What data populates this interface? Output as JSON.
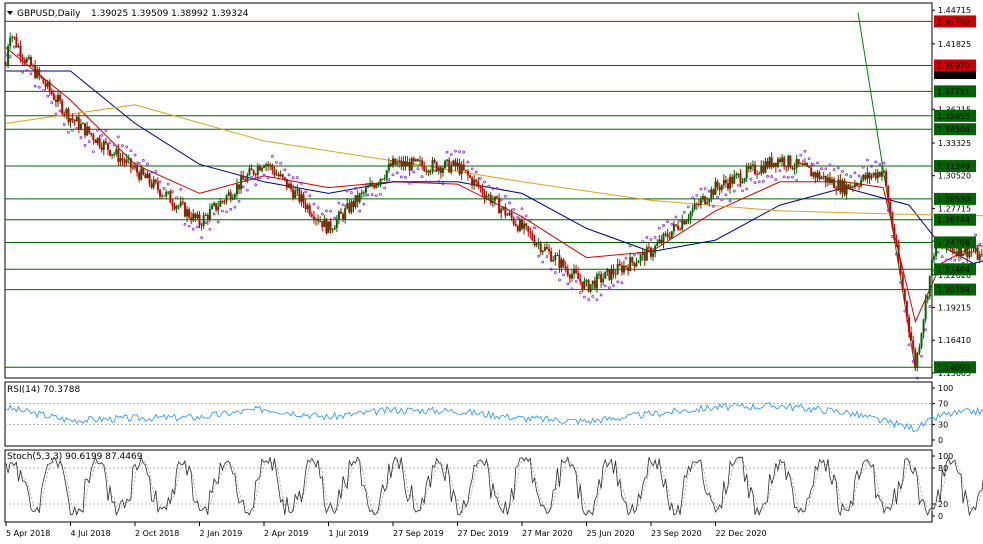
{
  "header": {
    "symbol": "GBPUSD,Daily",
    "ohlc": "1.39025 1.39509 1.38992 1.39324",
    "collapse_icon": "triangle-down-icon"
  },
  "colors": {
    "bull_candle": "#006400",
    "bear_candle": "#cc0000",
    "ma_fast": "#cc0000",
    "ma_mid": "#000080",
    "ma_slow": "#daa520",
    "sar": "#8a2be2",
    "support_line": "#006400",
    "resistance_line": "#cc0000",
    "trendline": "#008000",
    "rsi_line": "#1e90ff",
    "stoch_main": "#2f2f2f",
    "stoch_signal": "#a0a0a0"
  },
  "chart_data": {
    "type": "candlestick",
    "instrument": "GBPUSD",
    "timeframe": "Daily",
    "last_price": 1.39324,
    "ylim": [
      1.136,
      1.449
    ],
    "price_axis_ticks": [
      "1.44715",
      "1.41825",
      "1.39324",
      "1.36215",
      "1.33325",
      "1.30520",
      "1.27715",
      "1.24905",
      "1.22020",
      "1.19215",
      "1.16410",
      "1.13605"
    ],
    "horizontal_levels": [
      {
        "value": 1.4375,
        "label": "1.43750",
        "kind": "resistance"
      },
      {
        "value": 1.3997,
        "label": "1.39970",
        "kind": "resistance"
      },
      {
        "value": 1.37751,
        "label": "1.37751",
        "kind": "support"
      },
      {
        "value": 1.35655,
        "label": "1.35655",
        "kind": "support"
      },
      {
        "value": 1.34504,
        "label": "1.34504",
        "kind": "support"
      },
      {
        "value": 1.31349,
        "label": "1.31349",
        "kind": "support"
      },
      {
        "value": 1.2853,
        "label": "1.28530",
        "kind": "support"
      },
      {
        "value": 1.26744,
        "label": "1.26744",
        "kind": "support"
      },
      {
        "value": 1.24796,
        "label": "1.24796",
        "kind": "support"
      },
      {
        "value": 1.22494,
        "label": "1.22494",
        "kind": "support"
      },
      {
        "value": 1.20754,
        "label": "1.20754",
        "kind": "support"
      },
      {
        "value": 1.14093,
        "label": "1.14093",
        "kind": "support"
      }
    ],
    "x_tick_labels": [
      "5 Apr 2018",
      "4 Jul 2018",
      "2 Oct 2018",
      "2 Jan 2019",
      "2 Apr 2019",
      "1 Jul 2019",
      "27 Sep 2019",
      "27 Dec 2019",
      "27 Mar 2020",
      "25 Jun 2020",
      "23 Sep 2020",
      "22 Dec 2020"
    ],
    "price_path": [
      {
        "t": 0,
        "p": 1.4
      },
      {
        "t": 0.05,
        "p": 1.43
      },
      {
        "t": 0.3,
        "p": 1.405
      },
      {
        "t": 1,
        "p": 1.355
      },
      {
        "t": 2,
        "p": 1.31
      },
      {
        "t": 3,
        "p": 1.265
      },
      {
        "t": 4,
        "p": 1.318
      },
      {
        "t": 5,
        "p": 1.26
      },
      {
        "t": 6,
        "p": 1.315
      },
      {
        "t": 7,
        "p": 1.313
      },
      {
        "t": 8,
        "p": 1.26
      },
      {
        "t": 9,
        "p": 1.21
      },
      {
        "t": 10,
        "p": 1.24
      },
      {
        "t": 11,
        "p": 1.295
      },
      {
        "t": 12,
        "p": 1.32
      },
      {
        "t": 13,
        "p": 1.295
      },
      {
        "t": 13.6,
        "p": 1.31
      },
      {
        "t": 14.1,
        "p": 1.142
      },
      {
        "t": 14.4,
        "p": 1.245
      },
      {
        "t": 15,
        "p": 1.24
      },
      {
        "t": 15.5,
        "p": 1.215
      },
      {
        "t": 16,
        "p": 1.265
      },
      {
        "t": 16.4,
        "p": 1.23
      },
      {
        "t": 17,
        "p": 1.3
      },
      {
        "t": 17.5,
        "p": 1.34
      },
      {
        "t": 18,
        "p": 1.295
      },
      {
        "t": 18.5,
        "p": 1.285
      },
      {
        "t": 19,
        "p": 1.31
      },
      {
        "t": 20,
        "p": 1.345
      },
      {
        "t": 21,
        "p": 1.37
      },
      {
        "t": 21.4,
        "p": 1.393
      }
    ],
    "moving_averages": [
      {
        "name": "fast",
        "points": [
          [
            0,
            1.415
          ],
          [
            1,
            1.37
          ],
          [
            2,
            1.315
          ],
          [
            3,
            1.29
          ],
          [
            4,
            1.305
          ],
          [
            5,
            1.295
          ],
          [
            6,
            1.3
          ],
          [
            7,
            1.298
          ],
          [
            8,
            1.27
          ],
          [
            9,
            1.235
          ],
          [
            10,
            1.24
          ],
          [
            11,
            1.275
          ],
          [
            12,
            1.3
          ],
          [
            13,
            1.3
          ],
          [
            13.6,
            1.295
          ],
          [
            14.1,
            1.18
          ],
          [
            14.5,
            1.23
          ],
          [
            15,
            1.245
          ],
          [
            16,
            1.245
          ],
          [
            17,
            1.28
          ],
          [
            17.5,
            1.32
          ],
          [
            18,
            1.305
          ],
          [
            19,
            1.305
          ],
          [
            20,
            1.34
          ],
          [
            21,
            1.36
          ],
          [
            21.4,
            1.366
          ]
        ]
      },
      {
        "name": "mid",
        "points": [
          [
            0,
            1.395
          ],
          [
            1,
            1.395
          ],
          [
            2,
            1.35
          ],
          [
            3,
            1.315
          ],
          [
            4,
            1.3
          ],
          [
            5,
            1.29
          ],
          [
            6,
            1.3
          ],
          [
            7,
            1.3
          ],
          [
            8,
            1.29
          ],
          [
            9,
            1.26
          ],
          [
            10,
            1.24
          ],
          [
            11,
            1.25
          ],
          [
            12,
            1.28
          ],
          [
            13,
            1.295
          ],
          [
            14,
            1.28
          ],
          [
            14.5,
            1.245
          ],
          [
            15,
            1.23
          ],
          [
            16,
            1.245
          ],
          [
            17,
            1.26
          ],
          [
            18,
            1.28
          ],
          [
            19,
            1.3
          ],
          [
            20,
            1.318
          ],
          [
            21,
            1.335
          ],
          [
            21.4,
            1.34
          ]
        ]
      },
      {
        "name": "slow",
        "points": [
          [
            0,
            1.35
          ],
          [
            2,
            1.366
          ],
          [
            4,
            1.335
          ],
          [
            6,
            1.318
          ],
          [
            8,
            1.3
          ],
          [
            10,
            1.284
          ],
          [
            12,
            1.275
          ],
          [
            14,
            1.272
          ],
          [
            16,
            1.27
          ],
          [
            18,
            1.27
          ],
          [
            20,
            1.278
          ],
          [
            21,
            1.295
          ],
          [
            21.4,
            1.305
          ]
        ]
      }
    ],
    "trendline": [
      [
        14.1,
        1.138
      ],
      [
        24.5,
        1.445
      ]
    ],
    "rsi": {
      "label": "RSI(14) 70.3788",
      "period": 14,
      "value": 70.3788,
      "levels": [
        70,
        30
      ],
      "axis_ticks": [
        "100",
        "70",
        "30",
        "0"
      ],
      "path": [
        {
          "t": 0,
          "v": 62
        },
        {
          "t": 1,
          "v": 38
        },
        {
          "t": 2,
          "v": 42
        },
        {
          "t": 3,
          "v": 44
        },
        {
          "t": 4,
          "v": 60
        },
        {
          "t": 5,
          "v": 44
        },
        {
          "t": 6,
          "v": 58
        },
        {
          "t": 7,
          "v": 56
        },
        {
          "t": 8,
          "v": 42
        },
        {
          "t": 9,
          "v": 36
        },
        {
          "t": 10,
          "v": 50
        },
        {
          "t": 11,
          "v": 63
        },
        {
          "t": 12,
          "v": 66
        },
        {
          "t": 13,
          "v": 54
        },
        {
          "t": 14.1,
          "v": 22
        },
        {
          "t": 14.5,
          "v": 48
        },
        {
          "t": 15,
          "v": 55
        },
        {
          "t": 16,
          "v": 52
        },
        {
          "t": 17,
          "v": 62
        },
        {
          "t": 17.5,
          "v": 66
        },
        {
          "t": 18,
          "v": 48
        },
        {
          "t": 19,
          "v": 54
        },
        {
          "t": 20,
          "v": 62
        },
        {
          "t": 21,
          "v": 60
        },
        {
          "t": 21.4,
          "v": 70
        }
      ]
    },
    "stochastic": {
      "label": "Stoch(5,3,3) 90.6199 87.4469",
      "params": [
        5,
        3,
        3
      ],
      "main": 90.6199,
      "signal": 87.4469,
      "levels": [
        80,
        20
      ],
      "axis_ticks": [
        "100",
        "80",
        "20",
        "0"
      ]
    }
  }
}
